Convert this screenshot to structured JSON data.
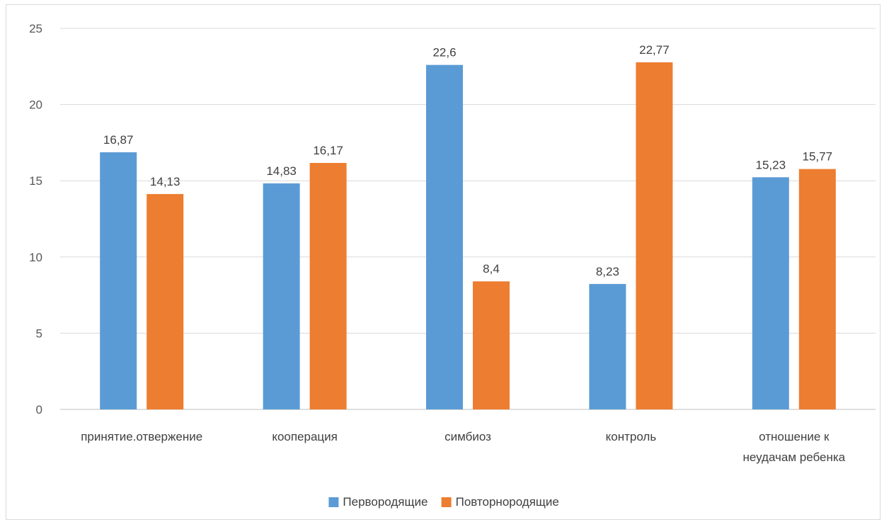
{
  "chart_data": {
    "type": "bar",
    "title": "",
    "xlabel": "",
    "ylabel": "",
    "ylim": [
      0,
      25
    ],
    "ytick_step": 5,
    "grid": true,
    "legend_position": "bottom",
    "categories": [
      [
        "принятие.отвержение"
      ],
      [
        "кооперация"
      ],
      [
        "симбиоз"
      ],
      [
        "контроль"
      ],
      [
        "отношение к",
        "неудачам ребенка"
      ]
    ],
    "series": [
      {
        "name": "Первородящие",
        "color": "#5b9bd5",
        "values": [
          16.87,
          14.83,
          22.6,
          8.23,
          15.23
        ],
        "labels": [
          "16,87",
          "14,83",
          "22,6",
          "8,23",
          "15,23"
        ]
      },
      {
        "name": "Повторнородящие",
        "color": "#ed7d31",
        "values": [
          14.13,
          16.17,
          8.4,
          22.77,
          15.77
        ],
        "labels": [
          "14,13",
          "16,17",
          "8,4",
          "22,77",
          "15,77"
        ]
      }
    ]
  }
}
